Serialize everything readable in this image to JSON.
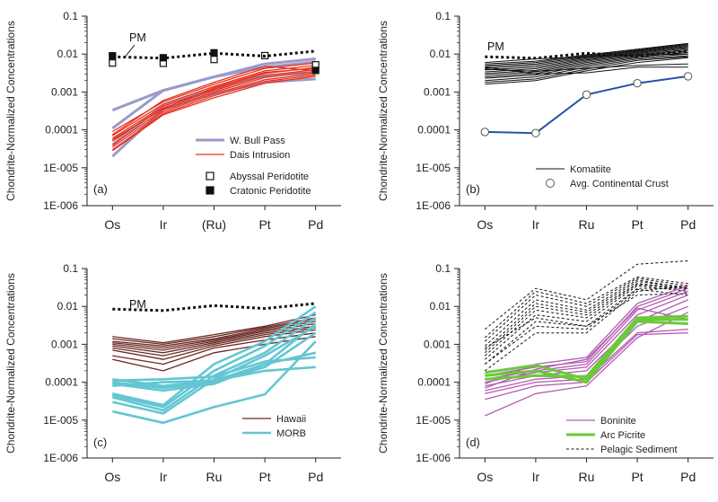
{
  "colors": {
    "wbull": "#9A9ACB",
    "dais": "#E8321E",
    "hawaii": "#6B2A24",
    "morb": "#63C6D2",
    "boninite": "#B35CB3",
    "arc_picrite": "#6CC83B",
    "komatiite": "#111111",
    "continental": "#2452A8",
    "sediment": "#111111",
    "pm": "#111111"
  },
  "y_tick_labels": [
    "0.1",
    "0.01",
    "0.001",
    "0.0001",
    "1E-005",
    "1E-006"
  ],
  "chart_data": [
    {
      "type": "line",
      "panel_label": "(a)",
      "ylabel": "Chondrite-Normalized Concentrations",
      "ylim": [
        1e-06,
        0.1
      ],
      "log_scale": true,
      "categories": [
        "Os",
        "Ir",
        "(Ru)",
        "Pt",
        "Pd"
      ],
      "annotation": "PM",
      "pm": [
        0.0085,
        0.0078,
        0.0105,
        0.0088,
        0.012
      ],
      "series": [
        {
          "name": "W. Bull Pass",
          "style": "wbull",
          "lines": [
            [
              0.00033,
              0.0011,
              0.0025,
              0.0055,
              0.0075
            ],
            [
              0.00011,
              0.0011,
              0.0025,
              0.0045,
              0.0062
            ],
            [
              4e-05,
              0.00045,
              0.0012,
              0.0027,
              0.0033
            ],
            [
              2e-05,
              0.00035,
              0.0009,
              0.0018,
              0.0022
            ]
          ]
        },
        {
          "name": "Dais Intrusion",
          "style": "dais",
          "lines": [
            [
              9e-05,
              0.00055,
              0.0016,
              0.0042,
              0.0058
            ],
            [
              7e-05,
              0.00048,
              0.0014,
              0.0036,
              0.005
            ],
            [
              6e-05,
              0.00042,
              0.0012,
              0.0031,
              0.0044
            ],
            [
              5e-05,
              0.00038,
              0.0011,
              0.0027,
              0.0039
            ],
            [
              4e-05,
              0.00034,
              0.001,
              0.0024,
              0.0035
            ],
            [
              3.5e-05,
              0.0003,
              0.0009,
              0.0021,
              0.0031
            ],
            [
              3e-05,
              0.00027,
              0.0008,
              0.0019,
              0.0028
            ],
            [
              2.8e-05,
              0.00025,
              0.0007,
              0.0017,
              0.0026
            ],
            [
              7.5e-05,
              0.0006,
              0.0018,
              0.0048,
              0.0036
            ],
            [
              5.5e-05,
              0.00036,
              0.0013,
              0.0033,
              0.0042
            ]
          ]
        },
        {
          "name": "Abyssal Peridotite",
          "style": "abyssal",
          "points": [
            0.0058,
            0.0057,
            0.0072,
            0.0091,
            0.0052
          ]
        },
        {
          "name": "Cratonic Peridotite",
          "style": "cratonic",
          "points": [
            0.009,
            0.008,
            0.0108,
            0.0,
            0.0037
          ]
        }
      ],
      "legend": [
        {
          "label": "W. Bull Pass",
          "style": "wbull"
        },
        {
          "label": "Dais Intrusion",
          "style": "dais"
        },
        {
          "label": "Abyssal Peridotite",
          "style": "abyssal"
        },
        {
          "label": "Cratonic Peridotite",
          "style": "cratonic"
        }
      ]
    },
    {
      "type": "line",
      "panel_label": "(b)",
      "ylabel": "Chondrite-Normalized Concentrations",
      "ylim": [
        1e-06,
        0.1
      ],
      "log_scale": true,
      "categories": [
        "Os",
        "Ir",
        "Ru",
        "Pt",
        "Pd"
      ],
      "annotation": "PM",
      "pm": [
        0.0085,
        0.0078,
        0.0105,
        0.0088,
        0.012
      ],
      "series": [
        {
          "name": "Komatiite",
          "style": "komatiite",
          "lines": [
            [
              0.0055,
              0.0065,
              0.0095,
              0.0135,
              0.019
            ],
            [
              0.005,
              0.006,
              0.009,
              0.0128,
              0.018
            ],
            [
              0.0046,
              0.0055,
              0.0085,
              0.0122,
              0.017
            ],
            [
              0.0042,
              0.005,
              0.008,
              0.0116,
              0.016
            ],
            [
              0.0038,
              0.0045,
              0.0075,
              0.011,
              0.015
            ],
            [
              0.0034,
              0.0041,
              0.007,
              0.0104,
              0.014
            ],
            [
              0.0031,
              0.0037,
              0.0065,
              0.0098,
              0.013
            ],
            [
              0.0028,
              0.0034,
              0.006,
              0.0092,
              0.012
            ],
            [
              0.0025,
              0.0031,
              0.0055,
              0.0086,
              0.011
            ],
            [
              0.0023,
              0.0028,
              0.005,
              0.008,
              0.01
            ],
            [
              0.002,
              0.0025,
              0.0045,
              0.0074,
              0.009
            ],
            [
              0.0018,
              0.0022,
              0.004,
              0.0068,
              0.0085
            ],
            [
              0.0016,
              0.002,
              0.0036,
              0.006,
              0.008
            ],
            [
              0.0045,
              0.003,
              0.0032,
              0.0045,
              0.0045
            ],
            [
              0.004,
              0.0035,
              0.0042,
              0.005,
              0.0055
            ],
            [
              0.006,
              0.0075,
              0.0085,
              0.0095,
              0.01
            ]
          ]
        },
        {
          "name": "Avg. Continental Crust",
          "style": "continental",
          "points": [
            8.8e-05,
            8.2e-05,
            0.00085,
            0.0017,
            0.0026
          ]
        }
      ],
      "legend": [
        {
          "label": "Komatiite",
          "style": "komatiite"
        },
        {
          "label": "Avg. Continental Crust",
          "style": "continental"
        }
      ]
    },
    {
      "type": "line",
      "panel_label": "(c)",
      "ylabel": "Chondrite-Normalized Concentrations",
      "ylim": [
        1e-06,
        0.1
      ],
      "log_scale": true,
      "categories": [
        "Os",
        "Ir",
        "Ru",
        "Pt",
        "Pd"
      ],
      "annotation": "PM",
      "pm": [
        0.0085,
        0.0078,
        0.0105,
        0.0088,
        0.012
      ],
      "series": [
        {
          "name": "Hawaii",
          "style": "hawaii",
          "lines": [
            [
              0.0016,
              0.0011,
              0.0018,
              0.003,
              0.006
            ],
            [
              0.0014,
              0.001,
              0.0016,
              0.0028,
              0.005
            ],
            [
              0.0012,
              0.0009,
              0.0014,
              0.0026,
              0.0045
            ],
            [
              0.0011,
              0.0008,
              0.0013,
              0.0024,
              0.004
            ],
            [
              0.001,
              0.0007,
              0.0012,
              0.0022,
              0.0035
            ],
            [
              0.0009,
              0.0006,
              0.0011,
              0.002,
              0.003
            ],
            [
              0.0008,
              0.0005,
              0.001,
              0.0018,
              0.0027
            ],
            [
              0.0007,
              0.0004,
              0.0009,
              0.0016,
              0.0024
            ],
            [
              0.0005,
              0.0003,
              0.0008,
              0.0013,
              0.002
            ],
            [
              0.0004,
              0.0002,
              0.0006,
              0.001,
              0.0016
            ]
          ]
        },
        {
          "name": "MORB",
          "style": "morb",
          "lines": [
            [
              5e-05,
              2.5e-05,
              0.0003,
              0.0012,
              0.01
            ],
            [
              4.5e-05,
              2.2e-05,
              0.0002,
              0.0009,
              0.007
            ],
            [
              4e-05,
              1.8e-05,
              0.00015,
              0.0006,
              0.005
            ],
            [
              3e-05,
              1.5e-05,
              0.00012,
              0.0005,
              0.003
            ],
            [
              1.7e-05,
              8.5e-06,
              2.2e-05,
              4.8e-05,
              0.0012
            ],
            [
              0.00012,
              8e-05,
              0.00011,
              0.0003,
              0.0035
            ],
            [
              0.0001,
              7e-05,
              0.0001,
              0.00025,
              0.002
            ],
            [
              9e-05,
              6e-05,
              9e-05,
              0.0003,
              0.0006
            ],
            [
              8e-05,
              0.0001,
              0.00011,
              0.0002,
              0.00025
            ],
            [
              0.00011,
              0.00012,
              0.00014,
              0.00035,
              0.00045
            ]
          ]
        }
      ],
      "legend": [
        {
          "label": "Hawaii",
          "style": "hawaii"
        },
        {
          "label": "MORB",
          "style": "morb"
        }
      ]
    },
    {
      "type": "line",
      "panel_label": "(d)",
      "ylabel": "Chondrite-Normalized Concentrations",
      "ylim": [
        1e-06,
        0.1
      ],
      "log_scale": true,
      "categories": [
        "Os",
        "Ir",
        "Ru",
        "Pt",
        "Pd"
      ],
      "series": [
        {
          "name": "Pelagic Sediment",
          "style": "sediment",
          "lines": [
            [
              0.0025,
              0.03,
              0.015,
              0.13,
              0.16
            ],
            [
              0.0015,
              0.025,
              0.012,
              0.06,
              0.04
            ],
            [
              0.0012,
              0.02,
              0.01,
              0.055,
              0.035
            ],
            [
              0.0009,
              0.015,
              0.008,
              0.05,
              0.03
            ],
            [
              0.0007,
              0.012,
              0.007,
              0.045,
              0.032
            ],
            [
              0.0006,
              0.01,
              0.006,
              0.04,
              0.03
            ],
            [
              0.0005,
              0.008,
              0.005,
              0.038,
              0.028
            ],
            [
              0.0004,
              0.006,
              0.004,
              0.035,
              0.025
            ],
            [
              0.0003,
              0.004,
              0.003,
              0.03,
              0.03
            ],
            [
              0.0003,
              0.003,
              0.0025,
              0.028,
              0.02
            ],
            [
              0.0002,
              0.002,
              0.002,
              0.025,
              0.035
            ],
            [
              0.0008,
              0.005,
              0.003,
              0.02,
              0.022
            ]
          ]
        },
        {
          "name": "Boninite",
          "style": "boninite",
          "lines": [
            [
              0.00015,
              0.00025,
              0.00035,
              0.01,
              0.03
            ],
            [
              0.00012,
              0.0002,
              0.0003,
              0.008,
              0.025
            ],
            [
              0.0001,
              0.00018,
              0.00025,
              0.006,
              0.02
            ],
            [
              8e-05,
              0.00015,
              0.0002,
              0.004,
              0.015
            ],
            [
              6e-05,
              0.00012,
              0.00015,
              0.003,
              0.01
            ],
            [
              5e-05,
              0.0001,
              0.00012,
              0.002,
              0.0025
            ],
            [
              3.5e-05,
              8e-05,
              0.0001,
              0.0018,
              0.002
            ],
            [
              1.3e-05,
              5e-05,
              8e-05,
              0.0015,
              0.007
            ],
            [
              9e-05,
              0.0003,
              0.00045,
              0.012,
              0.035
            ],
            [
              7e-05,
              0.00022,
              0.0004,
              0.009,
              0.0045
            ]
          ]
        },
        {
          "name": "Arc Picrite",
          "style": "arc_picrite",
          "lines": [
            [
              0.00018,
              0.00028,
              0.00012,
              0.0045,
              0.0045
            ],
            [
              0.00015,
              0.0002,
              0.0001,
              0.004,
              0.0035
            ],
            [
              0.00012,
              0.00015,
              0.00014,
              0.005,
              0.0055
            ]
          ]
        }
      ],
      "legend": [
        {
          "label": "Boninite",
          "style": "boninite"
        },
        {
          "label": "Arc Picrite",
          "style": "arc_picrite"
        },
        {
          "label": "Pelagic Sediment",
          "style": "sediment"
        }
      ]
    }
  ]
}
